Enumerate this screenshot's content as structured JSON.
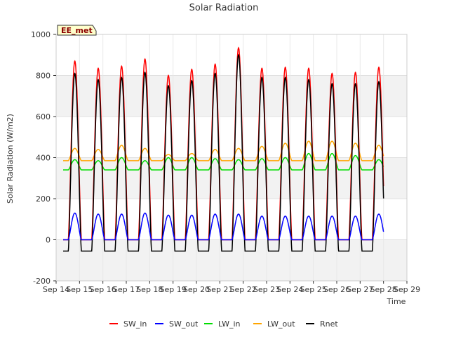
{
  "chart_data": {
    "type": "line",
    "title": "Solar Radiation",
    "xlabel": "Time",
    "ylabel": "Solar Radiation (W/m2)",
    "badge": "EE_met",
    "x_ticks": [
      "Sep 14",
      "Sep 15",
      "Sep 16",
      "Sep 17",
      "Sep 18",
      "Sep 19",
      "Sep 20",
      "Sep 21",
      "Sep 22",
      "Sep 23",
      "Sep 24",
      "Sep 25",
      "Sep 26",
      "Sep 27",
      "Sep 28",
      "Sep 29"
    ],
    "xlim": [
      0,
      15
    ],
    "ylim": [
      -200,
      1000
    ],
    "y_ticks": [
      -200,
      0,
      200,
      400,
      600,
      800,
      1000
    ],
    "grid": true,
    "background_bands": true,
    "legend_position": "bottom",
    "days": [
      0.3,
      1.3,
      2.3,
      3.3,
      4.3,
      5.3,
      6.3,
      7.3,
      8.3,
      9.3,
      10.3,
      11.3,
      12.3,
      13.3
    ],
    "series": [
      {
        "name": "SW_in",
        "color": "#ff0000",
        "night": 0,
        "peaks": [
          870,
          835,
          845,
          880,
          800,
          830,
          855,
          935,
          835,
          840,
          835,
          810,
          815,
          840
        ]
      },
      {
        "name": "SW_out",
        "color": "#0000ff",
        "night": 0,
        "peaks": [
          130,
          125,
          125,
          130,
          120,
          120,
          125,
          125,
          115,
          115,
          115,
          115,
          115,
          125
        ]
      },
      {
        "name": "LW_in",
        "color": "#00dd00",
        "night": 340,
        "peaks": [
          390,
          385,
          400,
          385,
          400,
          400,
          395,
          390,
          395,
          400,
          420,
          420,
          410,
          390
        ]
      },
      {
        "name": "LW_out",
        "color": "#ffa500",
        "night": 385,
        "peaks": [
          445,
          440,
          460,
          445,
          415,
          420,
          440,
          445,
          455,
          470,
          480,
          480,
          470,
          460
        ]
      },
      {
        "name": "Rnet",
        "color": "#000000",
        "night": -55,
        "peaks": [
          810,
          780,
          790,
          815,
          750,
          775,
          810,
          900,
          790,
          790,
          780,
          760,
          760,
          770
        ]
      }
    ]
  }
}
